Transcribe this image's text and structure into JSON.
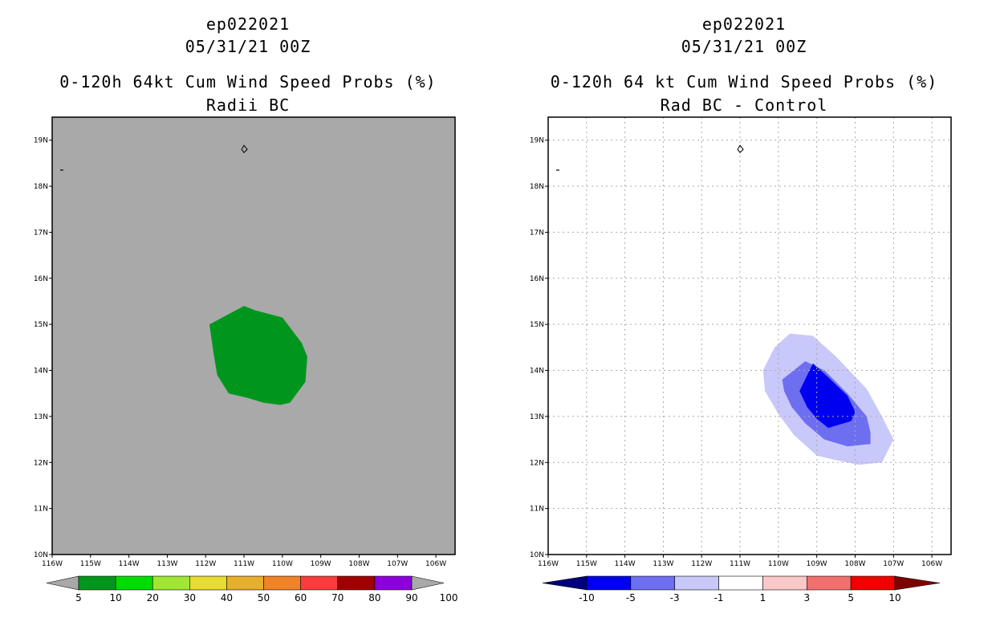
{
  "chart_data": [
    {
      "type": "heatmap",
      "storm_id": "ep022021",
      "date": "05/31/21 00Z",
      "title": "0-120h 64kt Cum Wind Speed Probs (%)",
      "subtitle": "Radii BC",
      "x_ticks": [
        "116W",
        "115W",
        "114W",
        "113W",
        "112W",
        "111W",
        "110W",
        "109W",
        "108W",
        "107W",
        "106W"
      ],
      "y_ticks": [
        "10N",
        "11N",
        "12N",
        "13N",
        "14N",
        "15N",
        "16N",
        "17N",
        "18N",
        "19N"
      ],
      "xlim": [
        -116,
        -105.5
      ],
      "ylim": [
        10,
        19.5
      ],
      "background_color": "#a9a9a9",
      "grid": false,
      "colorbar": {
        "labels": [
          "5",
          "10",
          "20",
          "30",
          "40",
          "50",
          "60",
          "70",
          "80",
          "90",
          "100"
        ],
        "colors": [
          "#00961e",
          "#00dc00",
          "#a0e632",
          "#e6dc32",
          "#e6af2d",
          "#f08228",
          "#fa3c3c",
          "#a00000",
          "#8c00dc",
          "#a9a9a9"
        ]
      },
      "contours": [
        {
          "level": 5,
          "color": "#00961e",
          "points": [
            [
              -111.9,
              15.0
            ],
            [
              -111.0,
              15.4
            ],
            [
              -110.7,
              15.3
            ],
            [
              -110.0,
              15.15
            ],
            [
              -109.5,
              14.6
            ],
            [
              -109.35,
              14.3
            ],
            [
              -109.4,
              13.75
            ],
            [
              -109.8,
              13.3
            ],
            [
              -110.05,
              13.25
            ],
            [
              -110.5,
              13.3
            ],
            [
              -110.9,
              13.4
            ],
            [
              -111.4,
              13.5
            ],
            [
              -111.7,
              13.9
            ],
            [
              -111.8,
              14.4
            ]
          ]
        }
      ],
      "markers": [
        {
          "lon": -115.75,
          "lat": 18.35
        },
        {
          "lon": -111.0,
          "lat": 18.8
        }
      ]
    },
    {
      "type": "heatmap",
      "storm_id": "ep022021",
      "date": "05/31/21 00Z",
      "title": "0-120h 64 kt Cum Wind Speed Probs (%)",
      "subtitle": "Rad BC - Control",
      "x_ticks": [
        "116W",
        "115W",
        "114W",
        "113W",
        "112W",
        "111W",
        "110W",
        "109W",
        "108W",
        "107W",
        "106W"
      ],
      "y_ticks": [
        "10N",
        "11N",
        "12N",
        "13N",
        "14N",
        "15N",
        "16N",
        "17N",
        "18N",
        "19N"
      ],
      "xlim": [
        -116,
        -105.5
      ],
      "ylim": [
        10,
        19.5
      ],
      "background_color": "#ffffff",
      "grid": true,
      "colorbar": {
        "labels": [
          "-10",
          "-5",
          "-3",
          "-1",
          "1",
          "3",
          "5",
          "10"
        ],
        "colors": [
          "#00007d",
          "#0000f0",
          "#6e6ef0",
          "#c8c8fa",
          "#ffffff",
          "#fac8c8",
          "#f07070",
          "#f00000",
          "#7d0000"
        ]
      },
      "contours": [
        {
          "level": -1,
          "color": "#c8c8fa",
          "points": [
            [
              -110.4,
              14.0
            ],
            [
              -110.1,
              14.5
            ],
            [
              -109.7,
              14.8
            ],
            [
              -109.1,
              14.75
            ],
            [
              -108.5,
              14.3
            ],
            [
              -107.7,
              13.6
            ],
            [
              -107.3,
              13.0
            ],
            [
              -107.0,
              12.5
            ],
            [
              -107.3,
              12.0
            ],
            [
              -107.9,
              11.95
            ],
            [
              -108.5,
              12.05
            ],
            [
              -109.0,
              12.15
            ],
            [
              -109.6,
              12.6
            ],
            [
              -110.0,
              13.05
            ],
            [
              -110.35,
              13.55
            ]
          ]
        },
        {
          "level": -3,
          "color": "#6e6ef0",
          "points": [
            [
              -109.9,
              13.8
            ],
            [
              -109.3,
              14.2
            ],
            [
              -108.8,
              14.0
            ],
            [
              -108.2,
              13.5
            ],
            [
              -107.7,
              13.0
            ],
            [
              -107.6,
              12.65
            ],
            [
              -107.6,
              12.4
            ],
            [
              -108.2,
              12.35
            ],
            [
              -108.8,
              12.5
            ],
            [
              -109.3,
              12.85
            ],
            [
              -109.65,
              13.2
            ],
            [
              -109.85,
              13.55
            ]
          ]
        },
        {
          "level": -5,
          "color": "#0000f0",
          "points": [
            [
              -109.45,
              13.55
            ],
            [
              -109.1,
              14.15
            ],
            [
              -108.7,
              13.85
            ],
            [
              -108.2,
              13.45
            ],
            [
              -108.0,
              13.1
            ],
            [
              -108.1,
              12.9
            ],
            [
              -108.7,
              12.75
            ],
            [
              -109.0,
              12.95
            ],
            [
              -109.25,
              13.2
            ]
          ]
        }
      ],
      "markers": [
        {
          "lon": -115.75,
          "lat": 18.35
        },
        {
          "lon": -111.0,
          "lat": 18.8
        }
      ]
    }
  ]
}
